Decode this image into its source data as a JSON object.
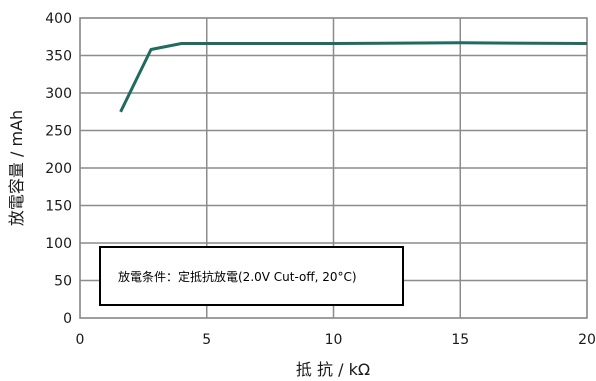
{
  "chart_data": {
    "type": "line",
    "xlabel": "抵 抗 / kΩ",
    "ylabel": "放電容量 / mAh",
    "xlim": [
      0,
      20
    ],
    "ylim": [
      0,
      400
    ],
    "x_ticks": [
      "0",
      "5",
      "10",
      "15",
      "20"
    ],
    "y_ticks": [
      "0",
      "50",
      "100",
      "150",
      "200",
      "250",
      "300",
      "350",
      "400"
    ],
    "grid": true,
    "annotation": "放電条件：定抵抗放電(2.0V Cut-off, 20°C)",
    "series": [
      {
        "color": "#1f6b5e",
        "x": [
          1.6,
          2.8,
          4.0,
          5,
          10,
          15,
          20
        ],
        "y": [
          275,
          358,
          366,
          366,
          366,
          367,
          366
        ]
      }
    ]
  }
}
